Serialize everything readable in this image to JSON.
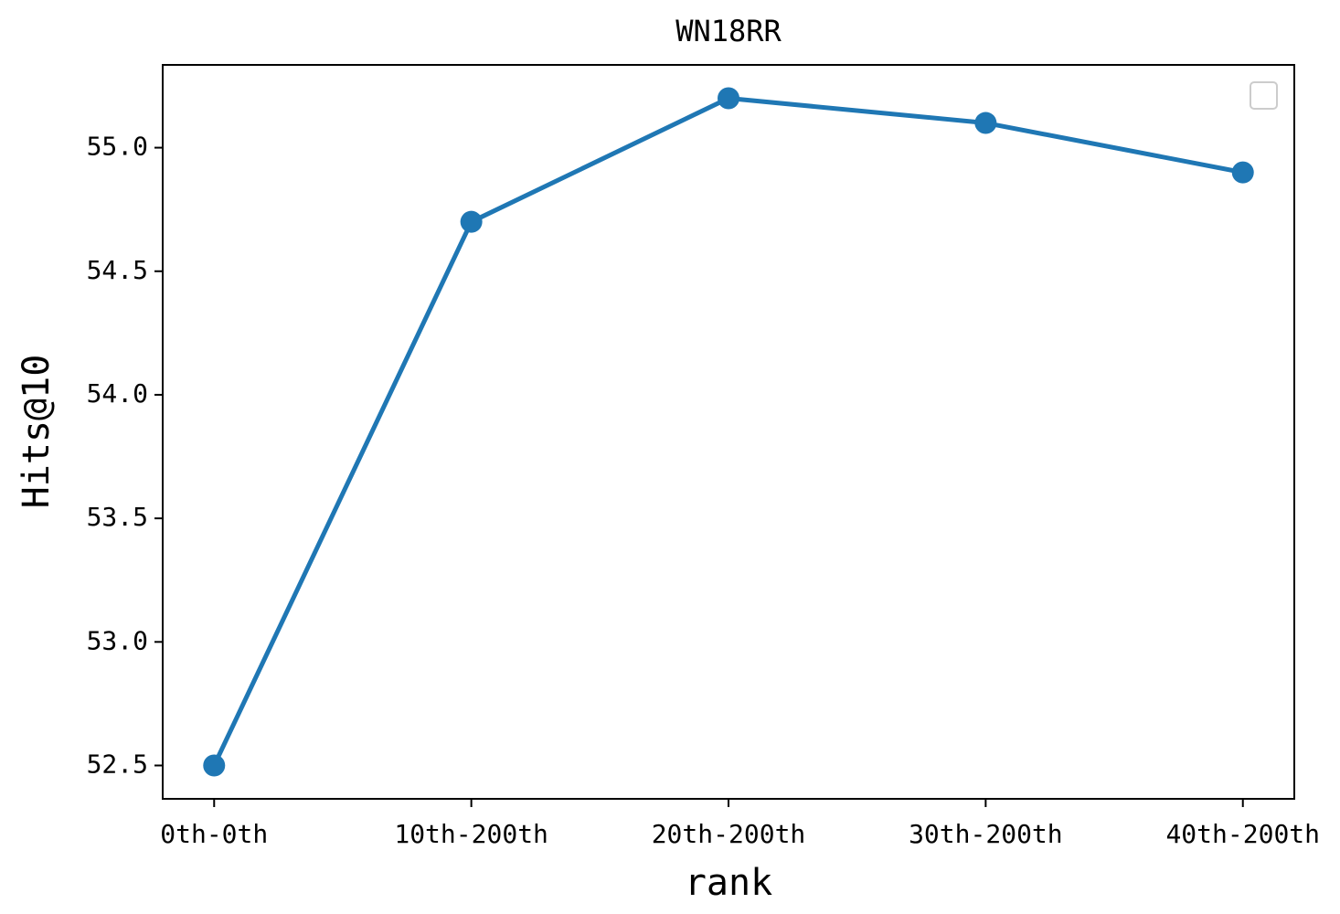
{
  "chart_data": {
    "type": "line",
    "title": "WN18RR",
    "xlabel": "rank",
    "ylabel": "Hits@10",
    "categories": [
      "0th-0th",
      "10th-200th",
      "20th-200th",
      "30th-200th",
      "40th-200th"
    ],
    "series": [
      {
        "color": "#1f77b4",
        "values": [
          52.5,
          54.7,
          55.2,
          55.1,
          54.9
        ]
      }
    ],
    "ylim": [
      52.365,
      55.335
    ],
    "yticks": [
      52.5,
      {
        "value": 53,
        "label": "53.0"
      },
      53.5,
      {
        "value": 54,
        "label": "54.0"
      },
      54.5,
      {
        "value": 55,
        "label": "55.0"
      }
    ],
    "legend": "upper right"
  }
}
